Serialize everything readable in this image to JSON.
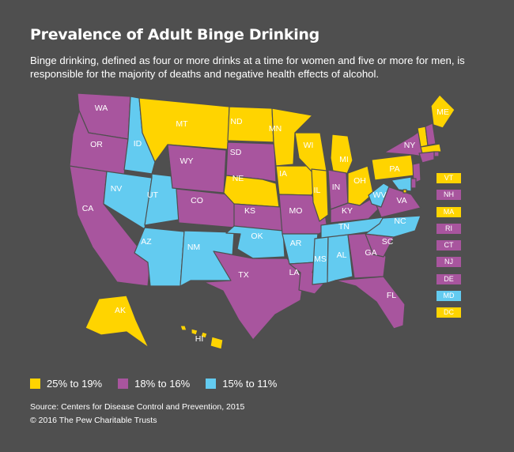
{
  "title": "Prevalence of Adult Binge Drinking",
  "subtitle": "Binge drinking, defined as four or more drinks at a time for women and five or more for men, is responsible for the majority of deaths and negative health effects of alcohol.",
  "colors": {
    "high": "#ffd400",
    "mid": "#a8559e",
    "low": "#63cbf0",
    "background": "#4f4f4f"
  },
  "legend": [
    {
      "label": "25% to 19%",
      "category": "high"
    },
    {
      "label": "18% to 16%",
      "category": "mid"
    },
    {
      "label": "15% to 11%",
      "category": "low"
    }
  ],
  "states": {
    "WA": "mid",
    "OR": "mid",
    "CA": "mid",
    "ID": "low",
    "NV": "low",
    "UT": "low",
    "AZ": "low",
    "MT": "high",
    "WY": "mid",
    "CO": "mid",
    "NM": "low",
    "ND": "high",
    "SD": "mid",
    "NE": "high",
    "KS": "mid",
    "OK": "low",
    "TX": "mid",
    "MN": "high",
    "IA": "high",
    "MO": "mid",
    "AR": "low",
    "LA": "mid",
    "WI": "high",
    "IL": "high",
    "MI": "high",
    "IN": "mid",
    "OH": "high",
    "KY": "mid",
    "TN": "low",
    "MS": "low",
    "AL": "low",
    "GA": "mid",
    "FL": "mid",
    "SC": "mid",
    "NC": "low",
    "VA": "mid",
    "WV": "low",
    "PA": "high",
    "NY": "mid",
    "ME": "high",
    "AK": "high",
    "HI": "high"
  },
  "small_states": [
    {
      "abbr": "VT",
      "category": "high"
    },
    {
      "abbr": "NH",
      "category": "mid"
    },
    {
      "abbr": "MA",
      "category": "high"
    },
    {
      "abbr": "RI",
      "category": "mid"
    },
    {
      "abbr": "CT",
      "category": "mid"
    },
    {
      "abbr": "NJ",
      "category": "mid"
    },
    {
      "abbr": "DE",
      "category": "mid"
    },
    {
      "abbr": "MD",
      "category": "low"
    },
    {
      "abbr": "DC",
      "category": "high"
    }
  ],
  "source": "Source: Centers for Disease Control and Prevention, 2015",
  "copyright": "© 2016 The Pew Charitable Trusts"
}
